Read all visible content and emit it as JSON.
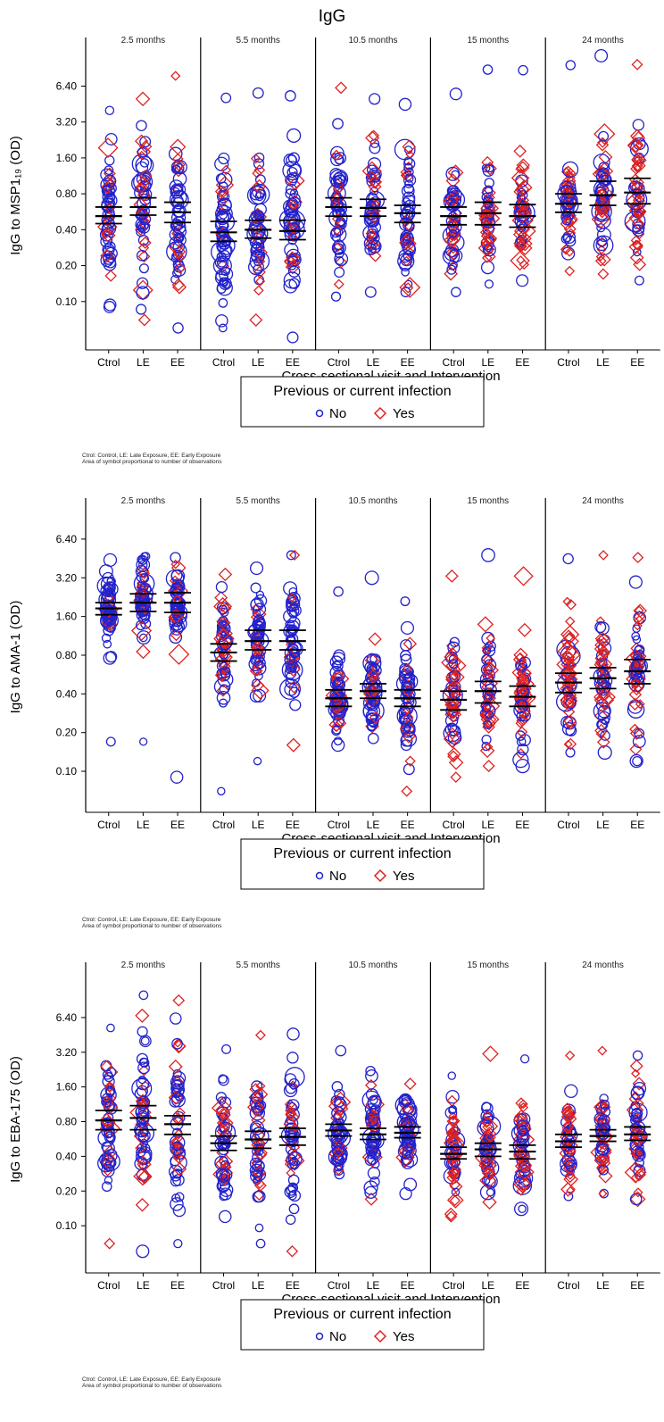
{
  "title": "IgG",
  "colors": {
    "no": "#2222cc",
    "yes": "#dd2222",
    "axis": "#000000"
  },
  "legend": {
    "title": "Previous or current infection",
    "no_label": "No",
    "yes_label": "Yes",
    "no_marker": "circle",
    "yes_marker": "diamond"
  },
  "footnote": {
    "line1": "Ctrol: Control, LE: Late Exposure, EE: Early Exposure",
    "line2": "Area of symbol proportional to number of observations"
  },
  "xlabel": "Cross-sectional visit and Intervention",
  "chart_data": [
    {
      "type": "scatter",
      "ylabel": "IgG to MSP1₁₉ (OD)",
      "y_scale": "log",
      "yticks": [
        "6.40",
        "3.20",
        "1.60",
        "0.80",
        "0.40",
        "0.20",
        "0.10"
      ],
      "ylim": [
        0.05,
        12
      ],
      "panels": [
        "2.5 months",
        "5.5 months",
        "10.5 months",
        "15   months",
        "24 months"
      ],
      "categories": [
        "Ctrol",
        "LE",
        "EE"
      ],
      "series": [
        {
          "name": "No",
          "marker": "circle"
        },
        {
          "name": "Yes",
          "marker": "diamond"
        }
      ],
      "groups": [
        {
          "panel": "2.5 months",
          "category": "Ctrol",
          "range": [
            0.09,
            4.0
          ],
          "ci": [
            0.45,
            0.52,
            0.62
          ]
        },
        {
          "panel": "2.5 months",
          "category": "LE",
          "range": [
            0.07,
            5.0
          ],
          "ci": [
            0.53,
            0.62,
            0.74
          ]
        },
        {
          "panel": "2.5 months",
          "category": "EE",
          "range": [
            0.06,
            7.8
          ],
          "ci": [
            0.46,
            0.56,
            0.68
          ]
        },
        {
          "panel": "5.5 months",
          "category": "Ctrol",
          "range": [
            0.06,
            5.1
          ],
          "ci": [
            0.32,
            0.38,
            0.47
          ]
        },
        {
          "panel": "5.5 months",
          "category": "LE",
          "range": [
            0.07,
            5.6
          ],
          "ci": [
            0.34,
            0.4,
            0.48
          ]
        },
        {
          "panel": "5.5 months",
          "category": "EE",
          "range": [
            0.05,
            5.3
          ],
          "ci": [
            0.33,
            0.39,
            0.48
          ]
        },
        {
          "panel": "10.5 months",
          "category": "Ctrol",
          "range": [
            0.11,
            6.2
          ],
          "ci": [
            0.52,
            0.62,
            0.74
          ]
        },
        {
          "panel": "10.5 months",
          "category": "LE",
          "range": [
            0.12,
            5.0
          ],
          "ci": [
            0.52,
            0.61,
            0.72
          ]
        },
        {
          "panel": "10.5 months",
          "category": "EE",
          "range": [
            0.12,
            4.5
          ],
          "ci": [
            0.46,
            0.55,
            0.64
          ]
        },
        {
          "panel": "15   months",
          "category": "Ctrol",
          "range": [
            0.12,
            5.5
          ],
          "ci": [
            0.44,
            0.52,
            0.62
          ]
        },
        {
          "panel": "15   months",
          "category": "LE",
          "range": [
            0.14,
            8.8
          ],
          "ci": [
            0.44,
            0.55,
            0.68
          ]
        },
        {
          "panel": "15   months",
          "category": "EE",
          "range": [
            0.15,
            8.7
          ],
          "ci": [
            0.42,
            0.52,
            0.65
          ]
        },
        {
          "panel": "24 months",
          "category": "Ctrol",
          "range": [
            0.18,
            9.6
          ],
          "ci": [
            0.56,
            0.66,
            0.8
          ]
        },
        {
          "panel": "24 months",
          "category": "LE",
          "range": [
            0.17,
            11.5
          ],
          "ci": [
            0.64,
            0.78,
            1.02
          ]
        },
        {
          "panel": "24 months",
          "category": "EE",
          "range": [
            0.15,
            9.7
          ],
          "ci": [
            0.66,
            0.82,
            1.08
          ]
        }
      ]
    },
    {
      "type": "scatter",
      "ylabel": "IgG to AMA-1 (OD)",
      "y_scale": "log",
      "yticks": [
        "6.40",
        "3.20",
        "1.60",
        "0.80",
        "0.40",
        "0.20",
        "0.10"
      ],
      "ylim": [
        0.06,
        10
      ],
      "panels": [
        "2.5 months",
        "5.5 months",
        "10.5 months",
        "15   months",
        "24 months"
      ],
      "categories": [
        "Ctrol",
        "LE",
        "EE"
      ],
      "series": [
        {
          "name": "No",
          "marker": "circle"
        },
        {
          "name": "Yes",
          "marker": "diamond"
        }
      ],
      "groups": [
        {
          "panel": "2.5 months",
          "category": "Ctrol",
          "range": [
            0.17,
            4.4
          ],
          "ci": [
            1.65,
            1.85,
            2.05
          ]
        },
        {
          "panel": "2.5 months",
          "category": "LE",
          "range": [
            0.17,
            4.7
          ],
          "ci": [
            1.75,
            2.05,
            2.4
          ]
        },
        {
          "panel": "2.5 months",
          "category": "EE",
          "range": [
            0.09,
            4.6
          ],
          "ci": [
            1.72,
            2.05,
            2.45
          ]
        },
        {
          "panel": "5.5 months",
          "category": "Ctrol",
          "range": [
            0.07,
            3.4
          ],
          "ci": [
            0.72,
            0.84,
            0.98
          ]
        },
        {
          "panel": "5.5 months",
          "category": "LE",
          "range": [
            0.12,
            3.8
          ],
          "ci": [
            0.88,
            1.03,
            1.25
          ]
        },
        {
          "panel": "5.5 months",
          "category": "EE",
          "range": [
            0.16,
            4.8
          ],
          "ci": [
            0.88,
            1.03,
            1.25
          ]
        },
        {
          "panel": "10.5 months",
          "category": "Ctrol",
          "range": [
            0.16,
            2.5
          ],
          "ci": [
            0.32,
            0.37,
            0.43
          ]
        },
        {
          "panel": "10.5 months",
          "category": "LE",
          "range": [
            0.18,
            3.2
          ],
          "ci": [
            0.37,
            0.42,
            0.48
          ]
        },
        {
          "panel": "10.5 months",
          "category": "EE",
          "range": [
            0.07,
            2.1
          ],
          "ci": [
            0.32,
            0.37,
            0.43
          ]
        },
        {
          "panel": "15   months",
          "category": "Ctrol",
          "range": [
            0.09,
            3.3
          ],
          "ci": [
            0.3,
            0.36,
            0.42
          ]
        },
        {
          "panel": "15   months",
          "category": "LE",
          "range": [
            0.11,
            4.8
          ],
          "ci": [
            0.34,
            0.42,
            0.5
          ]
        },
        {
          "panel": "15   months",
          "category": "EE",
          "range": [
            0.11,
            3.3
          ],
          "ci": [
            0.32,
            0.38,
            0.46
          ]
        },
        {
          "panel": "24 months",
          "category": "Ctrol",
          "range": [
            0.14,
            4.5
          ],
          "ci": [
            0.41,
            0.49,
            0.58
          ]
        },
        {
          "panel": "24 months",
          "category": "LE",
          "range": [
            0.14,
            4.8
          ],
          "ci": [
            0.44,
            0.53,
            0.64
          ]
        },
        {
          "panel": "24 months",
          "category": "EE",
          "range": [
            0.12,
            4.6
          ],
          "ci": [
            0.48,
            0.6,
            0.74
          ]
        }
      ]
    },
    {
      "type": "scatter",
      "ylabel": "IgG to EBA-175 (OD)",
      "y_scale": "log",
      "yticks": [
        "6.40",
        "3.20",
        "1.60",
        "0.80",
        "0.40",
        "0.20",
        "0.10"
      ],
      "ylim": [
        0.05,
        14
      ],
      "panels": [
        "2.5 months",
        "5.5 months",
        "10.5 months",
        "15   months",
        "24 months"
      ],
      "categories": [
        "Ctrol",
        "LE",
        "EE"
      ],
      "series": [
        {
          "name": "No",
          "marker": "circle"
        },
        {
          "name": "Yes",
          "marker": "diamond"
        }
      ],
      "groups": [
        {
          "panel": "2.5 months",
          "category": "Ctrol",
          "range": [
            0.07,
            5.2
          ],
          "ci": [
            0.68,
            0.82,
            1.0
          ]
        },
        {
          "panel": "2.5 months",
          "category": "LE",
          "range": [
            0.06,
            10.0
          ],
          "ci": [
            0.68,
            0.86,
            1.1
          ]
        },
        {
          "panel": "2.5 months",
          "category": "EE",
          "range": [
            0.07,
            9.0
          ],
          "ci": [
            0.62,
            0.76,
            0.9
          ]
        },
        {
          "panel": "5.5 months",
          "category": "Ctrol",
          "range": [
            0.12,
            3.4
          ],
          "ci": [
            0.45,
            0.52,
            0.6
          ]
        },
        {
          "panel": "5.5 months",
          "category": "LE",
          "range": [
            0.07,
            4.5
          ],
          "ci": [
            0.47,
            0.56,
            0.66
          ]
        },
        {
          "panel": "5.5 months",
          "category": "EE",
          "range": [
            0.06,
            4.6
          ],
          "ci": [
            0.5,
            0.59,
            0.7
          ]
        },
        {
          "panel": "10.5 months",
          "category": "Ctrol",
          "range": [
            0.28,
            3.3
          ],
          "ci": [
            0.6,
            0.67,
            0.76
          ]
        },
        {
          "panel": "10.5 months",
          "category": "LE",
          "range": [
            0.17,
            2.2
          ],
          "ci": [
            0.56,
            0.62,
            0.7
          ]
        },
        {
          "panel": "10.5 months",
          "category": "EE",
          "range": [
            0.19,
            1.7
          ],
          "ci": [
            0.58,
            0.64,
            0.72
          ]
        },
        {
          "panel": "15   months",
          "category": "Ctrol",
          "range": [
            0.12,
            2.0
          ],
          "ci": [
            0.38,
            0.42,
            0.48
          ]
        },
        {
          "panel": "15   months",
          "category": "LE",
          "range": [
            0.16,
            3.1
          ],
          "ci": [
            0.4,
            0.46,
            0.52
          ]
        },
        {
          "panel": "15   months",
          "category": "EE",
          "range": [
            0.14,
            2.8
          ],
          "ci": [
            0.38,
            0.44,
            0.5
          ]
        },
        {
          "panel": "24 months",
          "category": "Ctrol",
          "range": [
            0.18,
            3.0
          ],
          "ci": [
            0.48,
            0.54,
            0.62
          ]
        },
        {
          "panel": "24 months",
          "category": "LE",
          "range": [
            0.19,
            3.3
          ],
          "ci": [
            0.54,
            0.6,
            0.68
          ]
        },
        {
          "panel": "24 months",
          "category": "EE",
          "range": [
            0.17,
            3.0
          ],
          "ci": [
            0.55,
            0.62,
            0.72
          ]
        }
      ]
    }
  ]
}
